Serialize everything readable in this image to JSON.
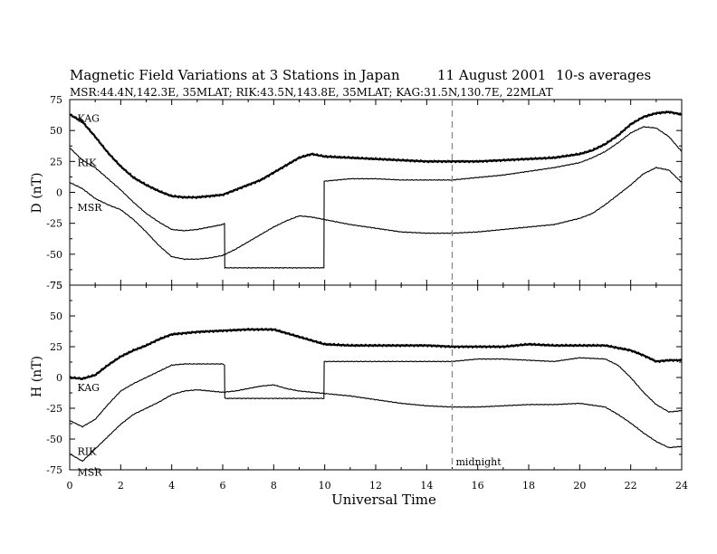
{
  "title": "Magnetic Field Variations at 3 Stations in Japan",
  "date": "11  August   2001",
  "averaging": "10-s averages",
  "subtitle": "MSR:44.4N,142.3E, 35MLAT;   RIK:43.5N,143.8E, 35MLAT;   KAG:31.5N,130.7E, 22MLAT",
  "chart_data": {
    "type": "line",
    "xlabel": "Universal Time",
    "xlim": [
      0,
      24
    ],
    "x_ticks": [
      "0",
      "2",
      "4",
      "6",
      "8",
      "10",
      "12",
      "14",
      "16",
      "18",
      "20",
      "22",
      "24"
    ],
    "annotation": {
      "text": "midnight",
      "x": 15,
      "style": "dashed vertical line"
    },
    "panels": [
      {
        "ylabel": "D (nT)",
        "ylim": [
          -75,
          75
        ],
        "y_ticks": [
          "75",
          "50",
          "25",
          "0",
          "-25",
          "-50",
          "-75"
        ],
        "series": [
          {
            "name": "KAG",
            "x": [
              0,
              0.5,
              1,
              1.5,
              2,
              2.5,
              3,
              3.5,
              4,
              4.5,
              5,
              5.5,
              6,
              6.5,
              7,
              7.5,
              8,
              8.5,
              9,
              9.5,
              10,
              11,
              12,
              13,
              14,
              15,
              16,
              17,
              18,
              19,
              20,
              20.5,
              21,
              21.5,
              22,
              22.5,
              23,
              23.5,
              24
            ],
            "y": [
              63,
              57,
              45,
              32,
              21,
              12,
              6,
              1,
              -3,
              -4,
              -4,
              -3,
              -2,
              2,
              6,
              10,
              16,
              22,
              28,
              31,
              29,
              28,
              27,
              26,
              25,
              25,
              25,
              26,
              27,
              28,
              31,
              34,
              39,
              46,
              55,
              61,
              64,
              65,
              63
            ]
          },
          {
            "name": "RIK",
            "x": [
              0,
              0.5,
              1,
              1.5,
              2,
              2.5,
              3,
              3.5,
              4,
              4.5,
              5,
              5.5,
              6,
              6.07,
              6.08,
              9.97,
              9.98,
              10.5,
              11,
              12,
              13,
              14,
              15,
              16,
              17,
              18,
              19,
              20,
              20.5,
              21,
              21.5,
              22,
              22.5,
              23,
              23.5,
              24
            ],
            "y": [
              36,
              26,
              20,
              11,
              2,
              -8,
              -17,
              -24,
              -30,
              -31,
              -30,
              -28,
              -26,
              -25,
              -61,
              -61,
              9,
              10,
              11,
              11,
              10,
              10,
              10,
              12,
              14,
              17,
              20,
              24,
              28,
              33,
              40,
              48,
              53,
              52,
              45,
              33
            ]
          },
          {
            "name": "MSR",
            "x": [
              0,
              0.5,
              1,
              1.5,
              2,
              2.5,
              3,
              3.5,
              4,
              4.5,
              5,
              5.5,
              6,
              6.5,
              7,
              7.5,
              8,
              8.5,
              9,
              9.5,
              10,
              11,
              12,
              13,
              14,
              15,
              16,
              17,
              18,
              19,
              20,
              20.5,
              21,
              21.5,
              22,
              22.5,
              23,
              23.5,
              24
            ],
            "y": [
              8,
              3,
              -5,
              -10,
              -14,
              -22,
              -32,
              -43,
              -52,
              -54,
              -54,
              -53,
              -51,
              -46,
              -40,
              -34,
              -28,
              -23,
              -19,
              -20,
              -22,
              -26,
              -29,
              -32,
              -33,
              -33,
              -32,
              -30,
              -28,
              -26,
              -21,
              -17,
              -10,
              -2,
              6,
              15,
              20,
              18,
              8
            ]
          }
        ]
      },
      {
        "ylabel": "H (nT)",
        "ylim": [
          -75,
          75
        ],
        "y_ticks": [
          "75",
          "50",
          "25",
          "0",
          "-25",
          "-50",
          "-75"
        ],
        "series": [
          {
            "name": "KAG",
            "x": [
              0,
              0.5,
              1,
              1.5,
              2,
              2.5,
              3,
              3.5,
              4,
              5,
              6,
              7,
              8,
              8.5,
              9,
              9.5,
              10,
              11,
              12,
              13,
              14,
              15,
              16,
              17,
              18,
              19,
              20,
              21,
              21.5,
              22,
              22.5,
              23,
              23.5,
              24
            ],
            "y": [
              0,
              -1,
              2,
              10,
              17,
              22,
              26,
              31,
              35,
              37,
              38,
              39,
              39,
              36,
              33,
              30,
              27,
              26,
              26,
              26,
              26,
              25,
              25,
              25,
              27,
              26,
              26,
              26,
              24,
              22,
              18,
              13,
              14,
              14
            ]
          },
          {
            "name": "RIK",
            "x": [
              0,
              0.5,
              1,
              1.5,
              2,
              2.5,
              3,
              3.5,
              4,
              4.5,
              5,
              5.5,
              6,
              6.07,
              6.08,
              9.97,
              9.98,
              10.5,
              11,
              12,
              13,
              14,
              15,
              16,
              17,
              18,
              19,
              20,
              21,
              21.5,
              22,
              22.5,
              23,
              23.5,
              24
            ],
            "y": [
              -35,
              -40,
              -34,
              -22,
              -11,
              -5,
              0,
              5,
              10,
              11,
              11,
              11,
              11,
              10,
              -17,
              -17,
              13,
              13,
              13,
              13,
              13,
              13,
              13,
              15,
              15,
              14,
              13,
              16,
              15,
              10,
              0,
              -12,
              -22,
              -28,
              -27
            ]
          },
          {
            "name": "MSR",
            "x": [
              0,
              0.5,
              1,
              1.5,
              2,
              2.5,
              3,
              3.5,
              4,
              4.5,
              5,
              5.5,
              6,
              6.5,
              7,
              7.5,
              8,
              8.5,
              9,
              9.5,
              10,
              11,
              12,
              13,
              14,
              15,
              16,
              17,
              18,
              19,
              20,
              21,
              21.5,
              22,
              22.5,
              23,
              23.5,
              24
            ],
            "y": [
              -62,
              -68,
              -58,
              -48,
              -38,
              -30,
              -25,
              -20,
              -14,
              -11,
              -10,
              -11,
              -12,
              -11,
              -9,
              -7,
              -6,
              -9,
              -11,
              -12,
              -13,
              -15,
              -18,
              -21,
              -23,
              -24,
              -24,
              -23,
              -22,
              -22,
              -21,
              -24,
              -30,
              -37,
              -45,
              -52,
              -57,
              -56
            ]
          }
        ]
      }
    ]
  }
}
